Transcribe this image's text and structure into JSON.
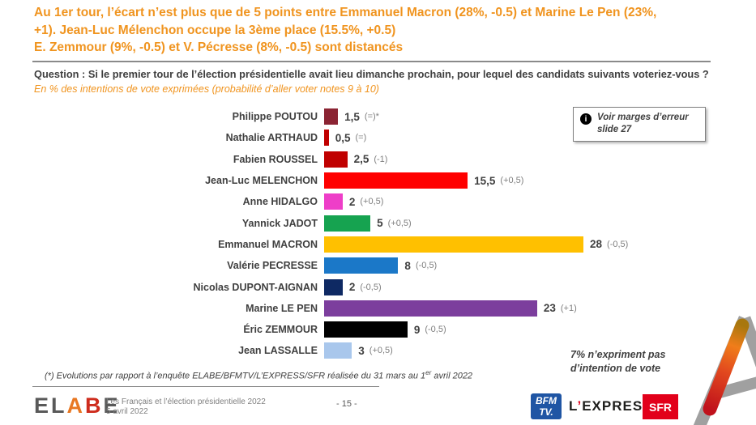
{
  "header": {
    "color": "#F0941F",
    "lines": [
      "Au 1er tour, l’écart n’est plus que de 5 points entre Emmanuel Macron (28%, -0.5) et Marine Le Pen (23%,",
      "+1). Jean-Luc Mélenchon occupe la 3ème place (15.5%, +0.5)",
      "E. Zemmour (9%, -0.5) et V. Pécresse (8%, -0.5) sont distancés"
    ]
  },
  "question": {
    "text": "Question : Si le premier tour de l’élection présidentielle avait lieu dimanche prochain, pour lequel des candidats suivants voteriez-vous ?",
    "subtitle": "En % des intentions de vote exprimées (probabilité d’aller voter notes 9 à 10)"
  },
  "chart_data": {
    "type": "bar",
    "orientation": "horizontal",
    "unit": "% des intentions de vote exprimées",
    "xlim": [
      0,
      30
    ],
    "categories": [
      "Philippe POUTOU",
      "Nathalie ARTHAUD",
      "Fabien ROUSSEL",
      "Jean-Luc MELENCHON",
      "Anne HIDALGO",
      "Yannick JADOT",
      "Emmanuel MACRON",
      "Valérie PECRESSE",
      "Nicolas DUPONT-AIGNAN",
      "Marine LE PEN",
      "Éric ZEMMOUR",
      "Jean LASSALLE"
    ],
    "values": [
      1.5,
      0.5,
      2.5,
      15.5,
      2,
      5,
      28,
      8,
      2,
      23,
      9,
      3
    ],
    "bars": [
      {
        "label": "Philippe POUTOU",
        "value": 1.5,
        "display": "1,5",
        "change": "(=)*",
        "color": "#8B2433"
      },
      {
        "label": "Nathalie ARTHAUD",
        "value": 0.5,
        "display": "0,5",
        "change": "(=)",
        "color": "#C00000"
      },
      {
        "label": "Fabien ROUSSEL",
        "value": 2.5,
        "display": "2,5",
        "change": "(-1)",
        "color": "#C00000"
      },
      {
        "label": "Jean-Luc MELENCHON",
        "value": 15.5,
        "display": "15,5",
        "change": "(+0,5)",
        "color": "#FF0000"
      },
      {
        "label": "Anne HIDALGO",
        "value": 2,
        "display": "2",
        "change": "(+0,5)",
        "color": "#EE3EC8"
      },
      {
        "label": "Yannick JADOT",
        "value": 5,
        "display": "5",
        "change": "(+0,5)",
        "color": "#16A350"
      },
      {
        "label": "Emmanuel MACRON",
        "value": 28,
        "display": "28",
        "change": "(-0,5)",
        "color": "#FFC000"
      },
      {
        "label": "Valérie PECRESSE",
        "value": 8,
        "display": "8",
        "change": "(-0,5)",
        "color": "#1B78C8"
      },
      {
        "label": "Nicolas DUPONT-AIGNAN",
        "value": 2,
        "display": "2",
        "change": "(-0,5)",
        "color": "#0E2963"
      },
      {
        "label": "Marine LE PEN",
        "value": 23,
        "display": "23",
        "change": "(+1)",
        "color": "#7C3E9D"
      },
      {
        "label": "Éric ZEMMOUR",
        "value": 9,
        "display": "9",
        "change": "(-0,5)",
        "color": "#000000"
      },
      {
        "label": "Jean LASSALLE",
        "value": 3,
        "display": "3",
        "change": "(+0,5)",
        "color": "#A9C7EC"
      }
    ]
  },
  "error_box": {
    "icon_glyph": "i",
    "lines": [
      "Voir marges d’erreur",
      "slide 27"
    ]
  },
  "note": {
    "lines": [
      "7% n’expriment pas",
      "d’intention de vote"
    ]
  },
  "footnote": {
    "prefix": "(*) Evolutions par rapport à l’enquête ELABE/BFMTV/L’EXPRESS/SFR réalisée du 31 mars au 1",
    "superscript": "er",
    "suffix": " avril 2022"
  },
  "footer": {
    "elabe": {
      "letters": [
        {
          "ch": "E",
          "color": "#595959"
        },
        {
          "ch": "L",
          "color": "#595959"
        },
        {
          "ch": "A",
          "color": "#E87722"
        },
        {
          "ch": "B",
          "color": "#CE2C1D"
        },
        {
          "ch": "E",
          "color": "#595959"
        }
      ]
    },
    "caption_line1": "Les Français et l’élection présidentielle 2022",
    "caption_line2": "5 avril 2022",
    "page_number": "- 15 -",
    "bfmtv": {
      "line1": "BFM",
      "line2": "TV.",
      "bg": "#1F55A4"
    },
    "express": {
      "l": "L",
      "apostrophe": "’",
      "rest": "EXPRESS",
      "apostrophe_color": "#E2001A"
    },
    "sfr": {
      "label": "SFR",
      "bg": "#E2001A"
    }
  }
}
